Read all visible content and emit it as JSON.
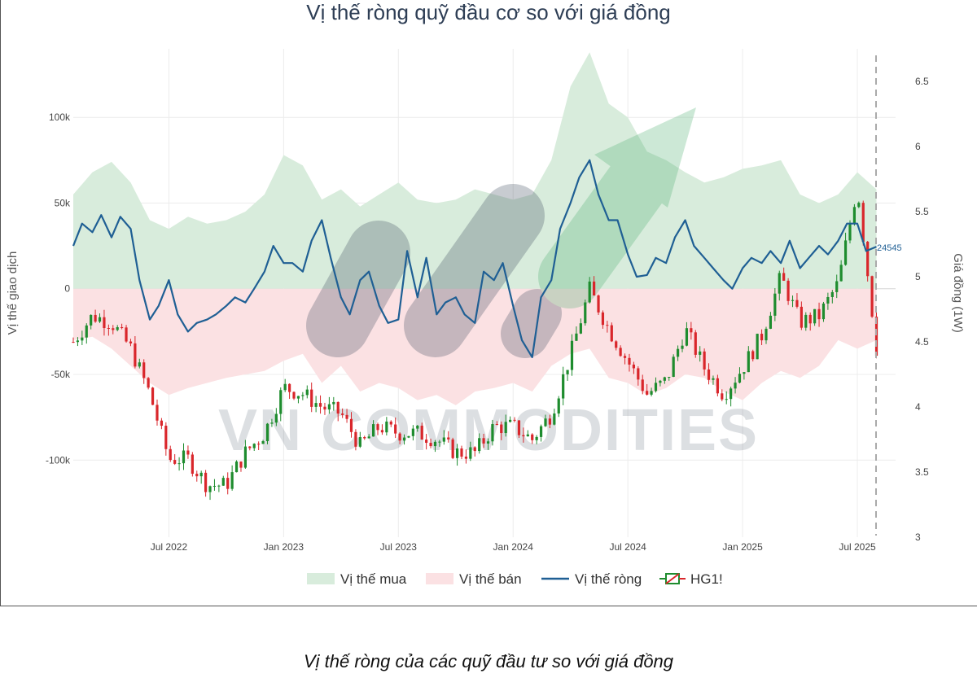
{
  "chart_data": {
    "type": "line",
    "title": "Vị thế ròng quỹ đầu cơ so với giá đồng",
    "ylabel_left": "Vị thế giao dịch",
    "ylabel_right": "Giá đồng (1W)",
    "y_left_ticks": [
      "100k",
      "50k",
      "0",
      "-50k",
      "-100k"
    ],
    "y_left_values": [
      100000,
      50000,
      0,
      -50000,
      -100000
    ],
    "ylim_left": [
      -145000,
      140000
    ],
    "y_right_ticks": [
      "6.5",
      "6",
      "5.5",
      "5",
      "4.5",
      "4",
      "3.5",
      "3"
    ],
    "y_right_values": [
      6.5,
      6,
      5.5,
      5,
      4.5,
      4,
      3.5,
      3
    ],
    "ylim_right": [
      3.0,
      6.75
    ],
    "x_ticks": [
      "Jul 2022",
      "Jan 2023",
      "Jul 2023",
      "Jan 2024",
      "Jul 2024",
      "Jan 2025",
      "Jul 2025"
    ],
    "x_tick_dates": [
      "2022-07",
      "2023-01",
      "2023-07",
      "2024-01",
      "2024-07",
      "2025-01",
      "2025-07"
    ],
    "xlim": [
      "2022-02",
      "2025-09"
    ],
    "grid": true,
    "legend_position": "bottom",
    "last_value_label": "24545",
    "series": [
      {
        "name": "Vị thế mua",
        "kind": "area",
        "color": "#d8ecdc",
        "points": [
          [
            "2022-02",
            55000
          ],
          [
            "2022-03",
            68000
          ],
          [
            "2022-04",
            74000
          ],
          [
            "2022-05",
            62000
          ],
          [
            "2022-06",
            40000
          ],
          [
            "2022-07",
            35000
          ],
          [
            "2022-08",
            42000
          ],
          [
            "2022-09",
            38000
          ],
          [
            "2022-10",
            40000
          ],
          [
            "2022-11",
            45000
          ],
          [
            "2022-12",
            55000
          ],
          [
            "2023-01",
            78000
          ],
          [
            "2023-02",
            72000
          ],
          [
            "2023-03",
            52000
          ],
          [
            "2023-04",
            58000
          ],
          [
            "2023-05",
            48000
          ],
          [
            "2023-06",
            55000
          ],
          [
            "2023-07",
            62000
          ],
          [
            "2023-08",
            52000
          ],
          [
            "2023-09",
            50000
          ],
          [
            "2023-10",
            52000
          ],
          [
            "2023-11",
            58000
          ],
          [
            "2023-12",
            55000
          ],
          [
            "2024-01",
            52000
          ],
          [
            "2024-02",
            55000
          ],
          [
            "2024-03",
            75000
          ],
          [
            "2024-04",
            118000
          ],
          [
            "2024-05",
            138000
          ],
          [
            "2024-06",
            108000
          ],
          [
            "2024-07",
            100000
          ],
          [
            "2024-08",
            80000
          ],
          [
            "2024-09",
            75000
          ],
          [
            "2024-10",
            68000
          ],
          [
            "2024-11",
            62000
          ],
          [
            "2024-12",
            65000
          ],
          [
            "2025-01",
            70000
          ],
          [
            "2025-02",
            72000
          ],
          [
            "2025-03",
            75000
          ],
          [
            "2025-04",
            55000
          ],
          [
            "2025-05",
            50000
          ],
          [
            "2025-06",
            55000
          ],
          [
            "2025-07",
            68000
          ],
          [
            "2025-08",
            58000
          ]
        ]
      },
      {
        "name": "Vị thế bán",
        "kind": "area",
        "color": "#fbe1e3",
        "points": [
          [
            "2022-02",
            -30000
          ],
          [
            "2022-03",
            -28000
          ],
          [
            "2022-04",
            -35000
          ],
          [
            "2022-05",
            -45000
          ],
          [
            "2022-06",
            -55000
          ],
          [
            "2022-07",
            -62000
          ],
          [
            "2022-08",
            -58000
          ],
          [
            "2022-09",
            -55000
          ],
          [
            "2022-10",
            -52000
          ],
          [
            "2022-11",
            -50000
          ],
          [
            "2022-12",
            -48000
          ],
          [
            "2023-01",
            -42000
          ],
          [
            "2023-02",
            -38000
          ],
          [
            "2023-03",
            -55000
          ],
          [
            "2023-04",
            -45000
          ],
          [
            "2023-05",
            -60000
          ],
          [
            "2023-06",
            -55000
          ],
          [
            "2023-07",
            -58000
          ],
          [
            "2023-08",
            -65000
          ],
          [
            "2023-09",
            -62000
          ],
          [
            "2023-10",
            -68000
          ],
          [
            "2023-11",
            -60000
          ],
          [
            "2023-12",
            -58000
          ],
          [
            "2024-01",
            -55000
          ],
          [
            "2024-02",
            -60000
          ],
          [
            "2024-03",
            -45000
          ],
          [
            "2024-04",
            -38000
          ],
          [
            "2024-05",
            -35000
          ],
          [
            "2024-06",
            -52000
          ],
          [
            "2024-07",
            -55000
          ],
          [
            "2024-08",
            -62000
          ],
          [
            "2024-09",
            -58000
          ],
          [
            "2024-10",
            -50000
          ],
          [
            "2024-11",
            -52000
          ],
          [
            "2024-12",
            -60000
          ],
          [
            "2025-01",
            -65000
          ],
          [
            "2025-02",
            -55000
          ],
          [
            "2025-03",
            -48000
          ],
          [
            "2025-04",
            -52000
          ],
          [
            "2025-05",
            -45000
          ],
          [
            "2025-06",
            -30000
          ],
          [
            "2025-07",
            -35000
          ],
          [
            "2025-08",
            -30000
          ]
        ]
      },
      {
        "name": "Vị thế ròng",
        "kind": "line",
        "color": "#1f5f94",
        "points": [
          [
            "2022-02",
            25000
          ],
          [
            "2022-02-15",
            38000
          ],
          [
            "2022-03",
            33000
          ],
          [
            "2022-03-15",
            43000
          ],
          [
            "2022-04",
            30000
          ],
          [
            "2022-04-15",
            42000
          ],
          [
            "2022-05",
            35000
          ],
          [
            "2022-05-15",
            5000
          ],
          [
            "2022-06",
            -18000
          ],
          [
            "2022-06-15",
            -10000
          ],
          [
            "2022-07",
            5000
          ],
          [
            "2022-07-15",
            -15000
          ],
          [
            "2022-08",
            -25000
          ],
          [
            "2022-08-15",
            -20000
          ],
          [
            "2022-09",
            -18000
          ],
          [
            "2022-09-15",
            -15000
          ],
          [
            "2022-10",
            -10000
          ],
          [
            "2022-10-15",
            -5000
          ],
          [
            "2022-11",
            -8000
          ],
          [
            "2022-11-15",
            0
          ],
          [
            "2022-12",
            10000
          ],
          [
            "2022-12-15",
            25000
          ],
          [
            "2023-01",
            15000
          ],
          [
            "2023-01-15",
            15000
          ],
          [
            "2023-02",
            10000
          ],
          [
            "2023-02-15",
            28000
          ],
          [
            "2023-03",
            40000
          ],
          [
            "2023-03-15",
            18000
          ],
          [
            "2023-04",
            -5000
          ],
          [
            "2023-04-15",
            -15000
          ],
          [
            "2023-05",
            5000
          ],
          [
            "2023-05-15",
            10000
          ],
          [
            "2023-06",
            -10000
          ],
          [
            "2023-06-15",
            -20000
          ],
          [
            "2023-07",
            -18000
          ],
          [
            "2023-07-15",
            22000
          ],
          [
            "2023-08",
            -5000
          ],
          [
            "2023-08-15",
            18000
          ],
          [
            "2023-09",
            -15000
          ],
          [
            "2023-09-15",
            -8000
          ],
          [
            "2023-10",
            -5000
          ],
          [
            "2023-10-15",
            -15000
          ],
          [
            "2023-11",
            -20000
          ],
          [
            "2023-11-15",
            10000
          ],
          [
            "2023-12",
            5000
          ],
          [
            "2023-12-15",
            15000
          ],
          [
            "2024-01",
            -10000
          ],
          [
            "2024-01-15",
            -30000
          ],
          [
            "2024-02",
            -40000
          ],
          [
            "2024-02-15",
            -5000
          ],
          [
            "2024-03",
            5000
          ],
          [
            "2024-03-15",
            35000
          ],
          [
            "2024-04",
            50000
          ],
          [
            "2024-04-15",
            65000
          ],
          [
            "2024-05",
            75000
          ],
          [
            "2024-05-15",
            55000
          ],
          [
            "2024-06",
            40000
          ],
          [
            "2024-06-15",
            40000
          ],
          [
            "2024-07",
            20000
          ],
          [
            "2024-07-15",
            7000
          ],
          [
            "2024-08",
            8000
          ],
          [
            "2024-08-15",
            18000
          ],
          [
            "2024-09",
            15000
          ],
          [
            "2024-09-15",
            30000
          ],
          [
            "2024-10",
            40000
          ],
          [
            "2024-10-15",
            25000
          ],
          [
            "2024-11",
            18000
          ],
          [
            "2024-11-15",
            12000
          ],
          [
            "2024-12",
            5000
          ],
          [
            "2024-12-15",
            0
          ],
          [
            "2025-01",
            12000
          ],
          [
            "2025-01-15",
            18000
          ],
          [
            "2025-02",
            15000
          ],
          [
            "2025-02-15",
            22000
          ],
          [
            "2025-03",
            15000
          ],
          [
            "2025-03-15",
            28000
          ],
          [
            "2025-04",
            12000
          ],
          [
            "2025-04-15",
            18000
          ],
          [
            "2025-05",
            25000
          ],
          [
            "2025-05-15",
            20000
          ],
          [
            "2025-06",
            28000
          ],
          [
            "2025-06-15",
            38000
          ],
          [
            "2025-07",
            38000
          ],
          [
            "2025-07-15",
            22000
          ],
          [
            "2025-08",
            24545
          ]
        ]
      },
      {
        "name": "HG1!",
        "kind": "candlestick",
        "color_up": "#1e8c2e",
        "color_down": "#d9262b",
        "anchors": [
          [
            "2022-02",
            4.5
          ],
          [
            "2022-03",
            4.7
          ],
          [
            "2022-04",
            4.65
          ],
          [
            "2022-05",
            4.45
          ],
          [
            "2022-06",
            4.1
          ],
          [
            "2022-07",
            3.6
          ],
          [
            "2022-08",
            3.6
          ],
          [
            "2022-09",
            3.4
          ],
          [
            "2022-10",
            3.4
          ],
          [
            "2022-11",
            3.65
          ],
          [
            "2022-12",
            3.8
          ],
          [
            "2023-01",
            4.15
          ],
          [
            "2023-02",
            4.1
          ],
          [
            "2023-03",
            4.0
          ],
          [
            "2023-04",
            3.95
          ],
          [
            "2023-05",
            3.7
          ],
          [
            "2023-06",
            3.85
          ],
          [
            "2023-07",
            3.8
          ],
          [
            "2023-08",
            3.8
          ],
          [
            "2023-09",
            3.75
          ],
          [
            "2023-10",
            3.65
          ],
          [
            "2023-11",
            3.65
          ],
          [
            "2023-12",
            3.85
          ],
          [
            "2024-01",
            3.85
          ],
          [
            "2024-02",
            3.75
          ],
          [
            "2024-03",
            3.95
          ],
          [
            "2024-04",
            4.4
          ],
          [
            "2024-05",
            4.9
          ],
          [
            "2024-06",
            4.6
          ],
          [
            "2024-07",
            4.35
          ],
          [
            "2024-08",
            4.1
          ],
          [
            "2024-09",
            4.2
          ],
          [
            "2024-10",
            4.6
          ],
          [
            "2024-11",
            4.3
          ],
          [
            "2024-12",
            4.1
          ],
          [
            "2025-01",
            4.3
          ],
          [
            "2025-02",
            4.55
          ],
          [
            "2025-03",
            5.0
          ],
          [
            "2025-04",
            4.65
          ],
          [
            "2025-05",
            4.7
          ],
          [
            "2025-06",
            4.95
          ],
          [
            "2025-07",
            5.7
          ],
          [
            "2025-08",
            4.45
          ]
        ]
      }
    ]
  },
  "watermark": "VN COMMODITIES",
  "caption": "Vị thế ròng của các quỹ đầu tư so với giá đồng"
}
